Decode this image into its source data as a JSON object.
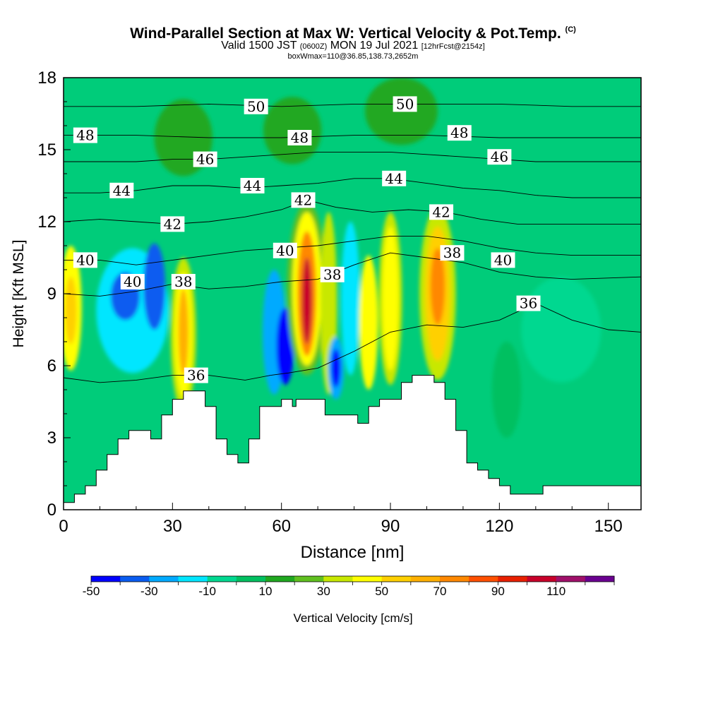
{
  "title": {
    "main": "Wind-Parallel Section at Max W: Vertical Velocity & Pot.Temp.",
    "copyright": "(C)",
    "valid_prefix": "Valid 1500 JST",
    "valid_z": "(0600Z)",
    "valid_date": "MON 19 Jul 2021",
    "fcst": "[12hrFcst@2154z]",
    "boxwmax": "boxWmax=110@36.85,138.73,2652m"
  },
  "chart_data": {
    "type": "heatmap",
    "xlabel": "Distance [nm]",
    "ylabel": "Height [Kft MSL]",
    "xlim": [
      0,
      159
    ],
    "ylim": [
      0,
      18
    ],
    "x_ticks": [
      "0",
      "30",
      "60",
      "90",
      "120",
      "150"
    ],
    "x_tick_values": [
      0,
      30,
      60,
      90,
      120,
      150
    ],
    "y_ticks": [
      "0",
      "3",
      "6",
      "9",
      "12",
      "15",
      "18"
    ],
    "y_tick_values": [
      0,
      3,
      6,
      9,
      12,
      15,
      18
    ],
    "colorbar": {
      "label": "Vertical Velocity [cm/s]",
      "tick_labels": [
        "-50",
        "-30",
        "-10",
        "10",
        "30",
        "50",
        "70",
        "90",
        "110"
      ],
      "levels": [
        -50,
        -40,
        -30,
        -20,
        -10,
        0,
        10,
        20,
        30,
        40,
        50,
        60,
        70,
        80,
        90,
        100,
        110,
        120
      ],
      "colors": [
        "#0000ff",
        "#0a5cf0",
        "#00aaff",
        "#00e6ff",
        "#00d890",
        "#00c060",
        "#20a820",
        "#60c020",
        "#c8e800",
        "#ffff00",
        "#ffd000",
        "#ffb000",
        "#ff8800",
        "#ff5000",
        "#e82000",
        "#c8002a",
        "#a0106a",
        "#6a0090"
      ]
    },
    "background_color": "#00cc7a",
    "terrain_profile": [
      [
        0,
        0.3
      ],
      [
        3,
        0.3
      ],
      [
        3,
        0.65
      ],
      [
        6,
        0.65
      ],
      [
        6,
        1.0
      ],
      [
        9,
        1.0
      ],
      [
        9,
        1.65
      ],
      [
        12,
        1.65
      ],
      [
        12,
        2.3
      ],
      [
        15,
        2.3
      ],
      [
        15,
        2.95
      ],
      [
        18,
        2.95
      ],
      [
        18,
        3.3
      ],
      [
        24,
        3.3
      ],
      [
        24,
        2.95
      ],
      [
        27,
        2.95
      ],
      [
        27,
        3.95
      ],
      [
        30,
        3.95
      ],
      [
        30,
        4.6
      ],
      [
        33,
        4.6
      ],
      [
        33,
        4.95
      ],
      [
        39,
        4.95
      ],
      [
        39,
        4.3
      ],
      [
        42,
        4.3
      ],
      [
        42,
        2.95
      ],
      [
        45,
        2.95
      ],
      [
        45,
        2.3
      ],
      [
        48,
        2.3
      ],
      [
        48,
        1.95
      ],
      [
        51,
        1.95
      ],
      [
        51,
        2.95
      ],
      [
        54,
        2.95
      ],
      [
        54,
        4.3
      ],
      [
        60,
        4.3
      ],
      [
        60,
        4.6
      ],
      [
        63,
        4.6
      ],
      [
        63,
        4.3
      ],
      [
        64,
        4.3
      ],
      [
        64,
        4.6
      ],
      [
        72,
        4.6
      ],
      [
        72,
        3.95
      ],
      [
        81,
        3.95
      ],
      [
        81,
        3.6
      ],
      [
        84,
        3.6
      ],
      [
        84,
        4.3
      ],
      [
        87,
        4.3
      ],
      [
        87,
        4.6
      ],
      [
        93,
        4.6
      ],
      [
        93,
        5.3
      ],
      [
        96,
        5.3
      ],
      [
        96,
        5.6
      ],
      [
        102,
        5.6
      ],
      [
        102,
        5.3
      ],
      [
        105,
        5.3
      ],
      [
        105,
        4.6
      ],
      [
        108,
        4.6
      ],
      [
        108,
        3.3
      ],
      [
        111,
        3.3
      ],
      [
        111,
        1.95
      ],
      [
        114,
        1.95
      ],
      [
        114,
        1.65
      ],
      [
        117,
        1.65
      ],
      [
        117,
        1.3
      ],
      [
        120,
        1.3
      ],
      [
        120,
        1.0
      ],
      [
        123,
        1.0
      ],
      [
        123,
        0.65
      ],
      [
        132,
        0.65
      ],
      [
        132,
        1.0
      ],
      [
        159,
        1.0
      ]
    ],
    "velocity_cells": [
      {
        "x": 2,
        "y": 8.4,
        "rx": 3,
        "ry": 2.6,
        "value": 40
      },
      {
        "x": 2,
        "y": 8.3,
        "rx": 1.6,
        "ry": 1.4,
        "value": 50
      },
      {
        "x": 19,
        "y": 8.3,
        "rx": 10,
        "ry": 2.6,
        "value": -20
      },
      {
        "x": 17,
        "y": 8.9,
        "rx": 4,
        "ry": 1.0,
        "value": -40
      },
      {
        "x": 25,
        "y": 9.3,
        "rx": 3,
        "ry": 1.8,
        "value": -40
      },
      {
        "x": 33,
        "y": 7.3,
        "rx": 3.5,
        "ry": 3.2,
        "value": 30
      },
      {
        "x": 33,
        "y": 7.3,
        "rx": 2.4,
        "ry": 2.6,
        "value": 40
      },
      {
        "x": 33,
        "y": 7.4,
        "rx": 1.4,
        "ry": 1.8,
        "value": 60
      },
      {
        "x": 58,
        "y": 7.4,
        "rx": 3.2,
        "ry": 2.6,
        "value": -30
      },
      {
        "x": 61,
        "y": 6.8,
        "rx": 2.4,
        "ry": 1.6,
        "value": -50
      },
      {
        "x": 67,
        "y": 9.2,
        "rx": 5.5,
        "ry": 3.6,
        "value": 20
      },
      {
        "x": 67,
        "y": 9.2,
        "rx": 4,
        "ry": 3.2,
        "value": 40
      },
      {
        "x": 67,
        "y": 9.0,
        "rx": 2.6,
        "ry": 2.6,
        "value": 70
      },
      {
        "x": 67,
        "y": 8.7,
        "rx": 1.4,
        "ry": 1.8,
        "value": 100
      },
      {
        "x": 73,
        "y": 8.6,
        "rx": 2.3,
        "ry": 3.8,
        "value": 30
      },
      {
        "x": 75,
        "y": 5.9,
        "rx": 2.2,
        "ry": 1.3,
        "value": -30
      },
      {
        "x": 75,
        "y": 5.9,
        "rx": 1.3,
        "ry": 0.8,
        "value": -50
      },
      {
        "x": 79,
        "y": 8.8,
        "rx": 2.6,
        "ry": 3.2,
        "value": -20
      },
      {
        "x": 84,
        "y": 7.8,
        "rx": 2.6,
        "ry": 2.8,
        "value": 40
      },
      {
        "x": 90,
        "y": 8.8,
        "rx": 3.2,
        "ry": 3.6,
        "value": 30
      },
      {
        "x": 90,
        "y": 8.8,
        "rx": 2.2,
        "ry": 3.0,
        "value": 40
      },
      {
        "x": 103,
        "y": 9.0,
        "rx": 5,
        "ry": 3.6,
        "value": 30
      },
      {
        "x": 103,
        "y": 9.0,
        "rx": 3.4,
        "ry": 2.8,
        "value": 50
      },
      {
        "x": 103,
        "y": 9.3,
        "rx": 2.0,
        "ry": 1.6,
        "value": 70
      },
      {
        "x": 137,
        "y": 7.5,
        "rx": 11,
        "ry": 2.2,
        "value": -10
      },
      {
        "x": 122,
        "y": 5.0,
        "rx": 4,
        "ry": 2.0,
        "value": 0
      },
      {
        "x": 63,
        "y": 15.8,
        "rx": 8,
        "ry": 1.4,
        "value": 10
      },
      {
        "x": 93,
        "y": 16.6,
        "rx": 10,
        "ry": 1.4,
        "value": 10
      },
      {
        "x": 33,
        "y": 15.5,
        "rx": 8,
        "ry": 1.6,
        "value": 10
      }
    ],
    "theta_contours": [
      {
        "label": "36",
        "label_x": 128,
        "label_y": 8.6,
        "points": [
          [
            57,
            5.6
          ],
          [
            62,
            5.7
          ],
          [
            70,
            5.9
          ],
          [
            80,
            6.6
          ],
          [
            90,
            7.4
          ],
          [
            100,
            7.7
          ],
          [
            110,
            7.6
          ],
          [
            120,
            7.9
          ],
          [
            130,
            8.6
          ],
          [
            140,
            7.9
          ],
          [
            150,
            7.5
          ],
          [
            159,
            7.4
          ]
        ]
      },
      {
        "label": "36",
        "label_x": 36.5,
        "label_y": 5.6,
        "points": [
          [
            0,
            5.5
          ],
          [
            10,
            5.3
          ],
          [
            20,
            5.4
          ],
          [
            30,
            5.6
          ],
          [
            40,
            5.6
          ],
          [
            50,
            5.4
          ],
          [
            57,
            5.6
          ]
        ]
      },
      {
        "label": "38",
        "label_x": 33,
        "label_y": 9.5,
        "points": [
          [
            0,
            9.0
          ],
          [
            10,
            8.9
          ],
          [
            20,
            9.1
          ],
          [
            30,
            9.4
          ],
          [
            40,
            9.2
          ],
          [
            50,
            9.3
          ],
          [
            60,
            9.5
          ],
          [
            70,
            9.6
          ],
          [
            80,
            10.2
          ],
          [
            90,
            10.7
          ],
          [
            100,
            10.5
          ],
          [
            110,
            10.3
          ],
          [
            120,
            9.9
          ],
          [
            130,
            9.7
          ],
          [
            140,
            9.6
          ],
          [
            159,
            9.7
          ]
        ]
      },
      {
        "label": "38",
        "label_x": 74,
        "label_y": 9.8,
        "points": []
      },
      {
        "label": "38",
        "label_x": 107,
        "label_y": 10.7,
        "points": []
      },
      {
        "label": "40",
        "label_x": 6,
        "label_y": 10.4,
        "points": [
          [
            0,
            10.4
          ],
          [
            10,
            10.4
          ],
          [
            20,
            10.2
          ],
          [
            30,
            10.4
          ],
          [
            40,
            10.6
          ],
          [
            50,
            10.8
          ],
          [
            60,
            10.9
          ],
          [
            70,
            11.0
          ],
          [
            80,
            11.2
          ],
          [
            90,
            11.4
          ],
          [
            100,
            11.4
          ],
          [
            110,
            11.2
          ],
          [
            120,
            10.9
          ],
          [
            130,
            10.7
          ],
          [
            140,
            10.6
          ],
          [
            159,
            10.6
          ]
        ]
      },
      {
        "label": "40",
        "label_x": 19,
        "label_y": 9.5,
        "points": []
      },
      {
        "label": "40",
        "label_x": 61,
        "label_y": 10.8,
        "points": []
      },
      {
        "label": "40",
        "label_x": 121,
        "label_y": 10.4,
        "points": []
      },
      {
        "label": "42",
        "label_x": 30,
        "label_y": 11.9,
        "points": [
          [
            0,
            12.0
          ],
          [
            10,
            12.1
          ],
          [
            20,
            12.0
          ],
          [
            30,
            11.9
          ],
          [
            40,
            12.0
          ],
          [
            50,
            12.2
          ],
          [
            60,
            12.5
          ],
          [
            67,
            12.9
          ],
          [
            75,
            12.6
          ],
          [
            85,
            12.4
          ],
          [
            95,
            12.5
          ],
          [
            105,
            12.4
          ],
          [
            115,
            12.1
          ],
          [
            125,
            11.9
          ],
          [
            135,
            11.9
          ],
          [
            159,
            11.9
          ]
        ]
      },
      {
        "label": "42",
        "label_x": 66,
        "label_y": 12.9,
        "points": []
      },
      {
        "label": "42",
        "label_x": 104,
        "label_y": 12.4,
        "points": []
      },
      {
        "label": "44",
        "label_x": 16,
        "label_y": 13.3,
        "points": [
          [
            0,
            13.2
          ],
          [
            10,
            13.2
          ],
          [
            20,
            13.3
          ],
          [
            30,
            13.5
          ],
          [
            40,
            13.5
          ],
          [
            50,
            13.4
          ],
          [
            60,
            13.5
          ],
          [
            70,
            13.6
          ],
          [
            80,
            13.8
          ],
          [
            90,
            13.8
          ],
          [
            100,
            13.6
          ],
          [
            110,
            13.4
          ],
          [
            120,
            13.3
          ],
          [
            130,
            13.1
          ],
          [
            140,
            13.0
          ],
          [
            159,
            13.0
          ]
        ]
      },
      {
        "label": "44",
        "label_x": 52,
        "label_y": 13.5,
        "points": []
      },
      {
        "label": "44",
        "label_x": 91,
        "label_y": 13.8,
        "points": []
      },
      {
        "label": "46",
        "label_x": 39,
        "label_y": 14.6,
        "points": [
          [
            0,
            14.5
          ],
          [
            10,
            14.5
          ],
          [
            20,
            14.5
          ],
          [
            30,
            14.6
          ],
          [
            40,
            14.6
          ],
          [
            50,
            14.7
          ],
          [
            60,
            14.8
          ],
          [
            70,
            14.9
          ],
          [
            80,
            14.9
          ],
          [
            90,
            14.9
          ],
          [
            100,
            14.8
          ],
          [
            110,
            14.7
          ],
          [
            120,
            14.6
          ],
          [
            130,
            14.5
          ],
          [
            140,
            14.5
          ],
          [
            159,
            14.5
          ]
        ]
      },
      {
        "label": "46",
        "label_x": 120,
        "label_y": 14.7,
        "points": []
      },
      {
        "label": "48",
        "label_x": 6,
        "label_y": 15.6,
        "points": [
          [
            0,
            15.6
          ],
          [
            20,
            15.6
          ],
          [
            40,
            15.5
          ],
          [
            60,
            15.5
          ],
          [
            80,
            15.6
          ],
          [
            100,
            15.6
          ],
          [
            120,
            15.5
          ],
          [
            140,
            15.5
          ],
          [
            159,
            15.5
          ]
        ]
      },
      {
        "label": "48",
        "label_x": 65,
        "label_y": 15.5,
        "points": []
      },
      {
        "label": "48",
        "label_x": 109,
        "label_y": 15.7,
        "points": []
      },
      {
        "label": "50",
        "label_x": 53,
        "label_y": 16.8,
        "points": [
          [
            0,
            16.8
          ],
          [
            20,
            16.8
          ],
          [
            40,
            16.9
          ],
          [
            60,
            16.8
          ],
          [
            80,
            16.9
          ],
          [
            100,
            16.9
          ],
          [
            120,
            16.9
          ],
          [
            140,
            16.8
          ],
          [
            159,
            16.8
          ]
        ]
      },
      {
        "label": "50",
        "label_x": 94,
        "label_y": 16.9,
        "points": []
      }
    ]
  }
}
